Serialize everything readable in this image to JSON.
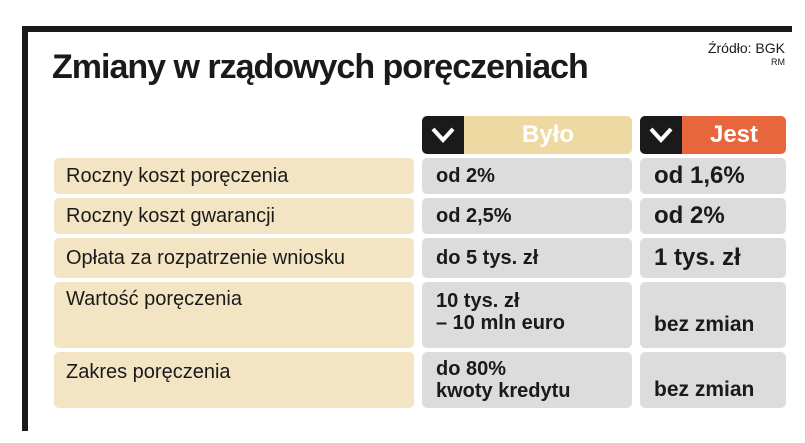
{
  "title": "Zmiany w rządowych poręczeniach",
  "source": {
    "label": "Źródło: BGK",
    "credit": "RM"
  },
  "columns": {
    "before": "Było",
    "after": "Jest"
  },
  "icons": {
    "before": "chevron-down-icon",
    "after": "chevron-down-icon"
  },
  "colors": {
    "before_header": "#efd9a3",
    "after_header": "#e8663c",
    "label_cell": "#f3e5c4",
    "value_cell": "#dcdcdc",
    "frame": "#1a1a1a"
  },
  "rows": [
    {
      "label": "Roczny koszt poręczenia",
      "before": [
        "od 2%"
      ],
      "after": [
        "od 1,6%"
      ]
    },
    {
      "label": "Roczny koszt gwarancji",
      "before": [
        "od 2,5%"
      ],
      "after": [
        "od 2%"
      ]
    },
    {
      "label": "Opłata za rozpatrzenie wniosku",
      "before": [
        "do 5 tys. zł"
      ],
      "after": [
        "1 tys. zł"
      ]
    },
    {
      "label": "Wartość poręczenia",
      "before": [
        "10 tys. zł",
        "– 10 mln euro"
      ],
      "after": [
        "bez zmian"
      ]
    },
    {
      "label": "Zakres poręczenia",
      "before": [
        "do 80%",
        "kwoty kredytu"
      ],
      "after": [
        "bez zmian"
      ]
    }
  ]
}
